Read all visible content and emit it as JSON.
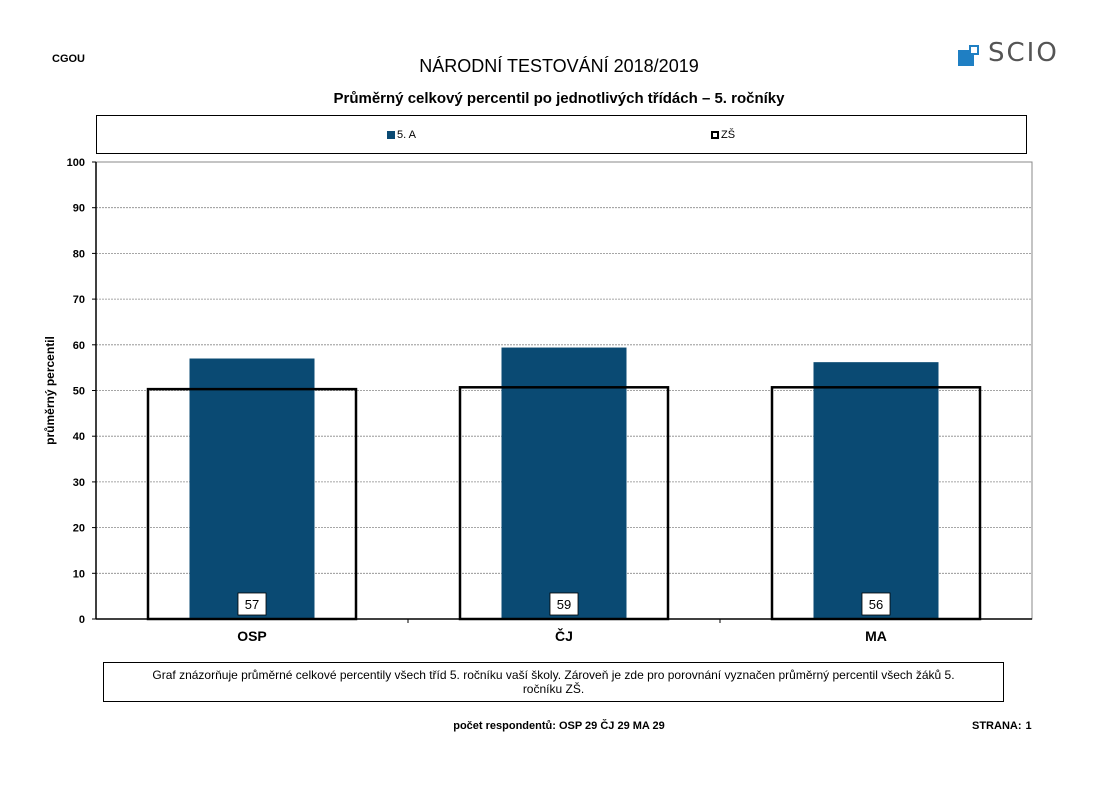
{
  "header": {
    "school_code": "CGOU",
    "title": "NÁRODNÍ TESTOVÁNÍ 2018/2019",
    "subtitle": "Průměrný celkový percentil po jednotlivých třídách – 5. ročníky",
    "logo_text": "SCIO"
  },
  "colors": {
    "class_bar": "#0a4a73",
    "school_bar": "#ffffff",
    "logo_accent": "#1f7fc3",
    "gridline": "#888888"
  },
  "chart_data": {
    "type": "bar",
    "categories": [
      "OSP",
      "ČJ",
      "MA"
    ],
    "series": [
      {
        "name": "5. A",
        "values": [
          57,
          59.4,
          56.2
        ],
        "labels": [
          "57",
          "59",
          "56"
        ]
      },
      {
        "name": "ZŠ",
        "values": [
          50.3,
          50.7,
          50.7
        ]
      }
    ],
    "ylabel": "průměrný percentil",
    "xlabel": "",
    "ylim": [
      0,
      100
    ],
    "yticks": [
      0,
      10,
      20,
      30,
      40,
      50,
      60,
      70,
      80,
      90,
      100
    ],
    "grid": true,
    "legend": "top"
  },
  "footer": {
    "note": "Graf znázorňuje průměrné celkové percentily všech tříd 5. ročníku vaší školy. Zároveň je zde pro porovnání vyznačen průměrný percentil všech žáků  5. ročníku ZŠ.",
    "respondents": "počet respondentů: OSP 29  ČJ 29  MA 29",
    "page_label": "STRANA:",
    "page_number": "1"
  }
}
